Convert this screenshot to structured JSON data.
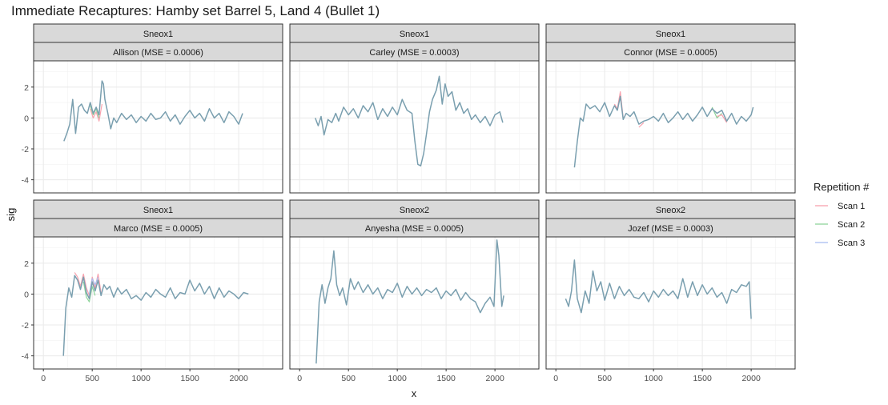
{
  "chart_data": {
    "type": "line",
    "title": "Immediate Recaptures: Hamby set Barrel 5, Land 4 (Bullet 1)",
    "xlabel": "x",
    "ylabel": "sig",
    "xlim": [
      -100,
      2450
    ],
    "ylim": [
      -4.85,
      3.7
    ],
    "x_ticks": [
      0,
      500,
      1000,
      1500,
      2000
    ],
    "x_tick_labels": [
      "0",
      "500",
      "1000",
      "1500",
      "2000"
    ],
    "y_ticks": [
      -4,
      -2,
      0,
      2
    ],
    "y_tick_labels": [
      "-4",
      "-2",
      "0",
      "2"
    ],
    "grid": true,
    "legend": {
      "title": "Repetition #",
      "position": "right",
      "entries": [
        {
          "label": "Scan 1",
          "color": "#F8A2AE"
        },
        {
          "label": "Scan 2",
          "color": "#8ED49A"
        },
        {
          "label": "Scan 3",
          "color": "#A9BDF0"
        }
      ]
    },
    "overlap_color": "#7A9FAF",
    "facets": [
      {
        "strip_top": "Sneox1",
        "strip_bottom": "Allison (MSE = 0.0006)",
        "x": [
          210,
          240,
          270,
          300,
          330,
          360,
          390,
          420,
          450,
          480,
          510,
          540,
          570,
          600,
          615,
          630,
          660,
          690,
          720,
          750,
          800,
          850,
          900,
          950,
          1000,
          1050,
          1100,
          1150,
          1200,
          1250,
          1300,
          1350,
          1400,
          1450,
          1500,
          1550,
          1600,
          1650,
          1700,
          1750,
          1800,
          1850,
          1900,
          1950,
          2000,
          2040
        ],
        "y": [
          -1.5,
          -1.0,
          -0.4,
          1.2,
          -1.0,
          0.7,
          0.9,
          0.5,
          0.3,
          1.0,
          0.3,
          0.7,
          0.2,
          2.4,
          2.2,
          1.2,
          0.3,
          -0.7,
          0.0,
          -0.3,
          0.3,
          -0.1,
          0.2,
          -0.3,
          0.1,
          -0.2,
          0.3,
          -0.1,
          0.0,
          0.4,
          -0.2,
          0.2,
          -0.4,
          0.1,
          0.5,
          0.0,
          0.3,
          -0.2,
          0.6,
          0.0,
          0.3,
          -0.3,
          0.4,
          0.1,
          -0.4,
          0.3
        ],
        "variations": [
          {
            "x": [
              480,
              510,
              540,
              570,
              600
            ],
            "y": [
              0.6,
              0.0,
              0.4,
              -0.2,
              0.9
            ],
            "series": "Scan 1"
          },
          {
            "x": [
              480,
              510,
              540,
              570
            ],
            "y": [
              0.8,
              0.2,
              0.6,
              0.0
            ],
            "series": "Scan 2"
          }
        ]
      },
      {
        "strip_top": "Sneox1",
        "strip_bottom": "Carley (MSE = 0.0003)",
        "x": [
          160,
          190,
          220,
          250,
          290,
          330,
          370,
          400,
          450,
          500,
          550,
          600,
          650,
          700,
          750,
          800,
          850,
          900,
          950,
          1000,
          1050,
          1100,
          1150,
          1180,
          1210,
          1240,
          1270,
          1300,
          1330,
          1360,
          1400,
          1430,
          1460,
          1490,
          1520,
          1560,
          1600,
          1640,
          1680,
          1720,
          1760,
          1800,
          1850,
          1900,
          1950,
          2000,
          2050,
          2080
        ],
        "y": [
          0.0,
          -0.5,
          0.1,
          -1.1,
          -0.1,
          -0.3,
          0.3,
          -0.2,
          0.7,
          0.2,
          0.6,
          0.0,
          0.8,
          0.4,
          1.0,
          -0.1,
          0.6,
          0.1,
          0.7,
          0.2,
          1.2,
          0.5,
          0.3,
          -1.5,
          -3.0,
          -3.1,
          -2.3,
          -1.0,
          0.4,
          1.2,
          1.8,
          2.7,
          0.9,
          2.2,
          1.4,
          1.7,
          0.5,
          1.0,
          0.3,
          0.6,
          -0.1,
          0.2,
          -0.3,
          0.1,
          -0.5,
          0.2,
          0.4,
          -0.3
        ],
        "variations": []
      },
      {
        "strip_top": "Sneox1",
        "strip_bottom": "Connor (MSE = 0.0005)",
        "x": [
          190,
          220,
          250,
          280,
          310,
          350,
          400,
          450,
          500,
          550,
          600,
          630,
          660,
          690,
          720,
          760,
          800,
          850,
          900,
          950,
          1000,
          1050,
          1100,
          1150,
          1200,
          1250,
          1300,
          1350,
          1400,
          1450,
          1500,
          1550,
          1600,
          1650,
          1700,
          1750,
          1800,
          1850,
          1900,
          1950,
          2000,
          2020
        ],
        "y": [
          -3.2,
          -1.5,
          0.0,
          -0.2,
          0.9,
          0.6,
          0.8,
          0.4,
          1.0,
          0.1,
          0.8,
          0.5,
          1.4,
          -0.1,
          0.3,
          0.1,
          0.4,
          -0.4,
          -0.2,
          -0.1,
          0.1,
          -0.2,
          0.3,
          -0.3,
          0.0,
          0.4,
          -0.1,
          0.3,
          -0.2,
          0.2,
          0.7,
          0.1,
          0.6,
          0.3,
          0.5,
          -0.2,
          0.3,
          -0.4,
          0.1,
          -0.2,
          0.2,
          0.7
        ],
        "variations": [
          {
            "x": [
              600,
              630,
              660,
              690
            ],
            "y": [
              0.9,
              0.6,
              1.7,
              0.0
            ],
            "series": "Scan 1"
          },
          {
            "x": [
              850,
              900
            ],
            "y": [
              -0.6,
              -0.3
            ],
            "series": "Scan 1"
          },
          {
            "x": [
              1600,
              1650,
              1700
            ],
            "y": [
              0.7,
              0.0,
              0.3
            ],
            "series": "Scan 2"
          },
          {
            "x": [
              1650,
              1700,
              1750
            ],
            "y": [
              0.1,
              0.2,
              -0.3
            ],
            "series": "Scan 1"
          }
        ]
      },
      {
        "strip_top": "Sneox1",
        "strip_bottom": "Marco (MSE = 0.0005)",
        "x": [
          205,
          230,
          260,
          290,
          320,
          350,
          380,
          410,
          440,
          470,
          500,
          530,
          560,
          590,
          620,
          650,
          680,
          720,
          760,
          800,
          850,
          900,
          950,
          1000,
          1050,
          1100,
          1150,
          1200,
          1250,
          1300,
          1350,
          1400,
          1450,
          1500,
          1550,
          1600,
          1650,
          1700,
          1750,
          1800,
          1850,
          1900,
          1950,
          2000,
          2050,
          2100
        ],
        "y": [
          -4.0,
          -0.9,
          0.4,
          -0.2,
          1.2,
          0.9,
          0.3,
          1.1,
          0.1,
          -0.3,
          0.8,
          0.2,
          0.9,
          -0.1,
          0.6,
          0.3,
          0.5,
          -0.2,
          0.4,
          0.0,
          0.3,
          -0.3,
          -0.1,
          -0.4,
          0.1,
          -0.2,
          0.3,
          0.0,
          -0.2,
          0.4,
          -0.3,
          0.1,
          0.0,
          0.9,
          0.2,
          0.7,
          0.0,
          0.5,
          -0.3,
          0.4,
          -0.2,
          0.2,
          0.0,
          -0.3,
          0.1,
          0.0
        ],
        "variations": [
          {
            "x": [
              320,
              350,
              380,
              410,
              440,
              470,
              500,
              530,
              560,
              590
            ],
            "y": [
              1.4,
              1.1,
              0.5,
              1.3,
              0.4,
              -0.1,
              1.1,
              0.4,
              1.3,
              0.1
            ],
            "series": "Scan 1"
          },
          {
            "x": [
              410,
              440,
              470,
              500,
              530
            ],
            "y": [
              0.8,
              -0.2,
              -0.5,
              0.5,
              -0.1
            ],
            "series": "Scan 2"
          },
          {
            "x": [
              470,
              500,
              530,
              560
            ],
            "y": [
              0.0,
              1.0,
              0.6,
              1.1
            ],
            "series": "Scan 3"
          }
        ]
      },
      {
        "strip_top": "Sneox2",
        "strip_bottom": "Anyesha (MSE = 0.0005)",
        "x": [
          170,
          200,
          230,
          260,
          290,
          320,
          350,
          380,
          410,
          440,
          480,
          520,
          560,
          600,
          650,
          700,
          750,
          800,
          850,
          900,
          950,
          1000,
          1050,
          1100,
          1150,
          1200,
          1250,
          1300,
          1350,
          1400,
          1450,
          1500,
          1550,
          1600,
          1650,
          1700,
          1750,
          1800,
          1850,
          1900,
          1950,
          1990,
          2020,
          2040,
          2070,
          2090
        ],
        "y": [
          -4.5,
          -0.5,
          0.6,
          -0.6,
          0.4,
          1.0,
          2.8,
          0.6,
          -0.1,
          0.4,
          -0.7,
          1.0,
          0.3,
          0.8,
          0.1,
          0.6,
          0.0,
          0.4,
          -0.3,
          0.3,
          0.1,
          0.7,
          -0.2,
          0.5,
          0.0,
          0.4,
          -0.1,
          0.3,
          0.1,
          0.4,
          -0.3,
          0.2,
          -0.1,
          0.3,
          -0.4,
          0.1,
          -0.3,
          -0.5,
          -1.2,
          -0.6,
          -0.2,
          -0.8,
          3.5,
          2.5,
          -0.8,
          -0.1
        ],
        "variations": []
      },
      {
        "strip_top": "Sneox2",
        "strip_bottom": "Jozef (MSE = 0.0003)",
        "x": [
          100,
          130,
          160,
          190,
          220,
          260,
          300,
          340,
          380,
          420,
          460,
          500,
          550,
          600,
          650,
          700,
          750,
          800,
          850,
          900,
          950,
          1000,
          1050,
          1100,
          1150,
          1200,
          1250,
          1300,
          1350,
          1400,
          1450,
          1500,
          1550,
          1600,
          1650,
          1700,
          1750,
          1800,
          1850,
          1900,
          1950,
          1980,
          2000
        ],
        "y": [
          -0.3,
          -0.8,
          0.2,
          2.2,
          -0.3,
          -1.2,
          0.2,
          -0.6,
          1.5,
          0.2,
          0.8,
          -0.4,
          0.7,
          -0.3,
          0.5,
          -0.1,
          0.3,
          -0.2,
          -0.3,
          0.1,
          -0.5,
          0.2,
          -0.2,
          0.3,
          -0.1,
          0.2,
          -0.3,
          1.0,
          -0.2,
          0.8,
          -0.1,
          0.6,
          0.0,
          0.4,
          -0.2,
          0.1,
          -0.6,
          0.3,
          0.1,
          0.6,
          0.5,
          0.8,
          -1.6
        ],
        "variations": []
      }
    ]
  }
}
